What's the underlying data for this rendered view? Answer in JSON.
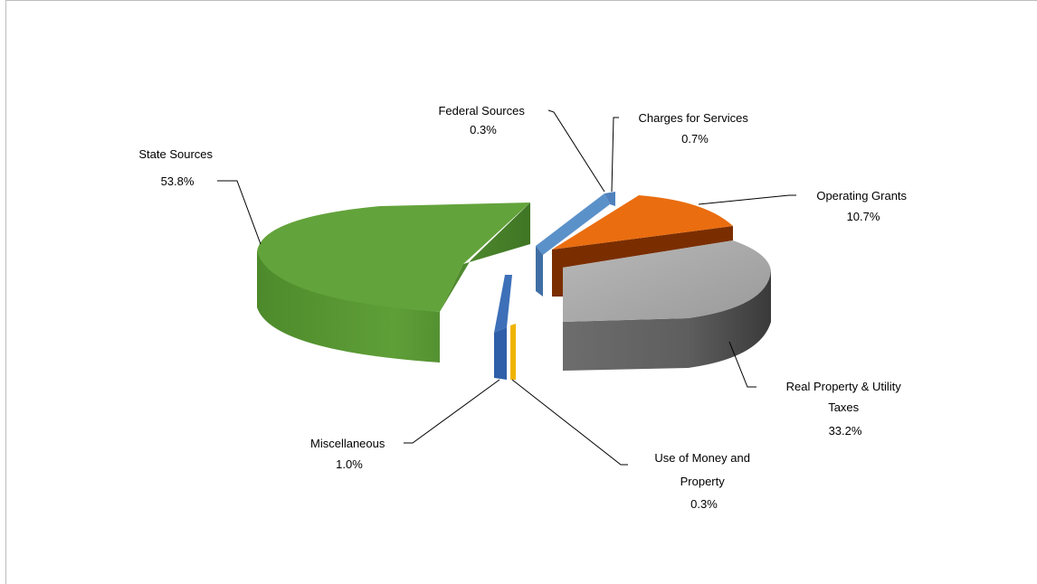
{
  "chart_data": {
    "type": "pie",
    "style": "3d-exploded",
    "series": [
      {
        "name": "Federal Sources",
        "label_lines": [
          "Federal Sources",
          "0.3%"
        ],
        "value": 0.3,
        "color": "#4f81bd"
      },
      {
        "name": "Charges for Services",
        "label_lines": [
          "Charges for Services",
          "0.7%"
        ],
        "value": 0.7,
        "color": "#4f81bd"
      },
      {
        "name": "Operating Grants",
        "label_lines": [
          "Operating Grants",
          "10.7%"
        ],
        "value": 10.7,
        "color": "#e46c0a"
      },
      {
        "name": "Real Property & Utility Taxes",
        "label_lines": [
          "Real Property & Utility",
          "Taxes",
          "33.2%"
        ],
        "value": 33.2,
        "color": "#a6a6a6"
      },
      {
        "name": "Use of Money and Property",
        "label_lines": [
          "Use of Money and",
          "Property",
          "0.3%"
        ],
        "value": 0.3,
        "color": "#f0b400"
      },
      {
        "name": "Miscellaneous",
        "label_lines": [
          "Miscellaneous",
          "1.0%"
        ],
        "value": 1.0,
        "color": "#2e5fa8"
      },
      {
        "name": "State Sources",
        "label_lines": [
          "State Sources",
          "53.8%"
        ],
        "value": 53.8,
        "color": "#5f9a37"
      }
    ]
  }
}
